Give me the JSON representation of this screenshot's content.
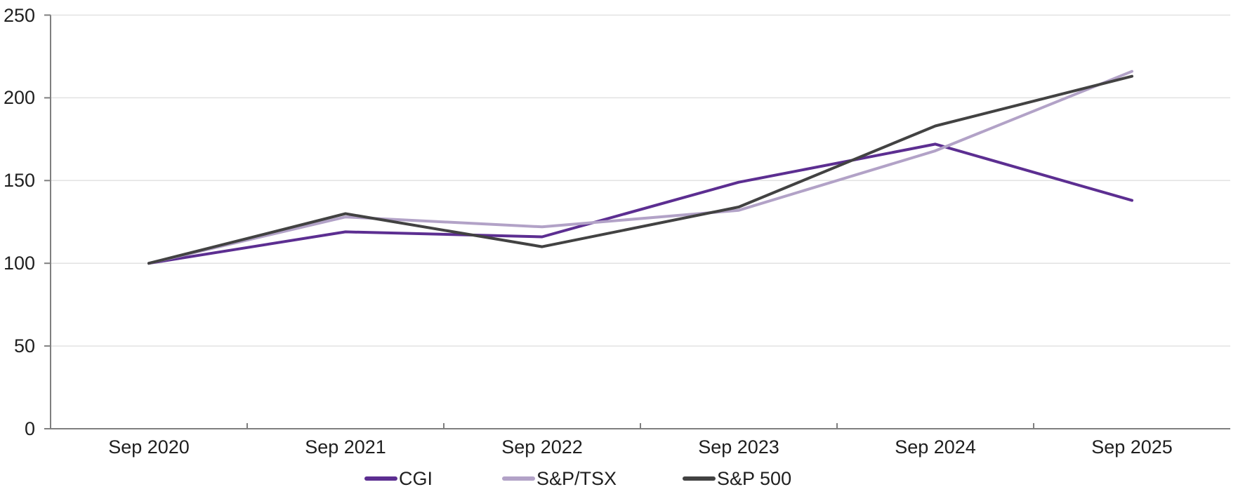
{
  "chart_data": {
    "type": "line",
    "title": "",
    "xlabel": "",
    "ylabel": "",
    "categories": [
      "Sep 2020",
      "Sep 2021",
      "Sep 2022",
      "Sep 2023",
      "Sep 2024",
      "Sep 2025"
    ],
    "series": [
      {
        "name": "CGI",
        "color": "#5C2E91",
        "values": [
          100,
          119,
          116,
          149,
          172,
          138
        ]
      },
      {
        "name": "S&P/TSX",
        "color": "#B2A2C7",
        "values": [
          100,
          128,
          122,
          132,
          168,
          216
        ]
      },
      {
        "name": "S&P 500",
        "color": "#424242",
        "values": [
          100,
          130,
          110,
          134,
          183,
          213
        ]
      }
    ],
    "ylim": [
      0,
      250
    ],
    "y_ticks": [
      0,
      50,
      100,
      150,
      200,
      250
    ],
    "y_tick_labels": [
      "0",
      "50",
      "100",
      "150",
      "200",
      "250"
    ],
    "grid": true,
    "legend_position": "bottom",
    "axis_color": "#7F7F7F",
    "gridline_color": "#E2E2E2",
    "text_color": "#1F1F1F"
  }
}
